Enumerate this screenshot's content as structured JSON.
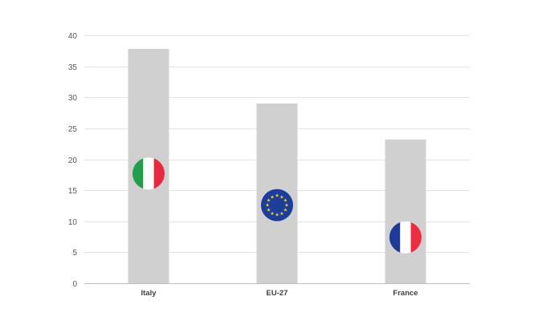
{
  "chart_data": {
    "type": "bar",
    "categories": [
      "Italy",
      "EU-27",
      "France"
    ],
    "values": [
      37.8,
      29.0,
      23.2
    ],
    "marker_values": [
      17.7,
      12.6,
      7.4
    ],
    "marker_icons": [
      "italy-flag-icon",
      "eu-flag-icon",
      "france-flag-icon"
    ],
    "ylim": [
      0,
      40
    ],
    "yticks": [
      0,
      5,
      10,
      15,
      20,
      25,
      30,
      35,
      40
    ],
    "grid": true,
    "bar_color": "#d0d0d0",
    "title": "",
    "xlabel": "",
    "ylabel": ""
  },
  "colors": {
    "italy_green": "#1f9e4b",
    "italy_white": "#ffffff",
    "italy_red": "#e8283c",
    "eu_blue": "#1d3d9c",
    "eu_star": "#ffd500",
    "france_blue": "#1d3a99",
    "france_white": "#ffffff",
    "france_red": "#ef2b3d"
  }
}
